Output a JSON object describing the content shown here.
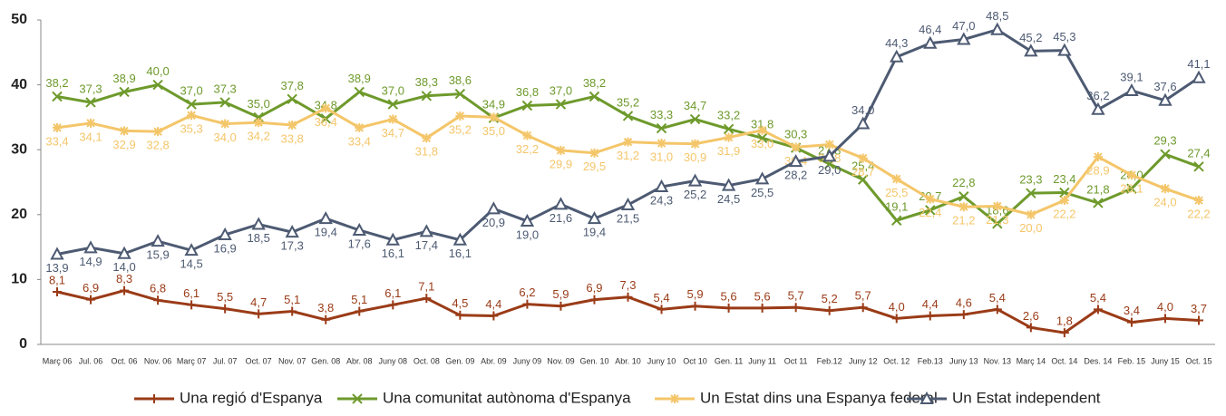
{
  "chart_data": {
    "type": "line",
    "categories": [
      "Març 06",
      "Jul. 06",
      "Oct. 06",
      "Nov. 06",
      "Març 07",
      "Jul. 07",
      "Oct. 07",
      "Nov. 07",
      "Gen. 08",
      "Abr. 08",
      "Juny 08",
      "Oct. 08",
      "Gen. 09",
      "Abr. 09",
      "Juny 09",
      "Nov. 09",
      "Gen. 10",
      "Abr. 10",
      "Juny 10",
      "Oct 10",
      "Gen. 11",
      "Juny 11",
      "Oct 11",
      "Feb.12",
      "Juny 12",
      "Oct. 12",
      "Feb.13",
      "Juny 13",
      "Nov. 13",
      "Març 14",
      "Oct. 14",
      "Des. 14",
      "Feb. 15",
      "Juny 15",
      "Oct. 15"
    ],
    "ylim": [
      0,
      50
    ],
    "yticks": [
      0,
      10,
      20,
      30,
      40,
      50
    ],
    "grid": false,
    "legend": "bottom",
    "series": [
      {
        "name": "Una regió d'Espanya",
        "color": "#9a3b17",
        "marker": "plus",
        "values": [
          8.1,
          6.9,
          8.3,
          6.8,
          6.1,
          5.5,
          4.7,
          5.1,
          3.8,
          5.1,
          6.1,
          7.1,
          4.5,
          4.4,
          6.2,
          5.9,
          6.9,
          7.3,
          5.4,
          5.9,
          5.6,
          5.6,
          5.7,
          5.2,
          5.7,
          4.0,
          4.4,
          4.6,
          5.4,
          2.6,
          1.8,
          5.4,
          3.4,
          4.0,
          3.7
        ],
        "value_labels": [
          "8,1",
          "6,9",
          "8,3",
          "6,8",
          "6,1",
          "5,5",
          "4,7",
          "5,1",
          "3,8",
          "5,1",
          "6,1",
          "7,1",
          "4,5",
          "4,4",
          "6,2",
          "5,9",
          "6,9",
          "7,3",
          "5,4",
          "5,9",
          "5,6",
          "5,6",
          "5,7",
          "5,2",
          "5,7",
          "4,0",
          "4,4",
          "4,6",
          "5,4",
          "2,6",
          "1,8",
          "5,4",
          "3,4",
          "4,0",
          "3,7"
        ]
      },
      {
        "name": "Una comunitat autònoma d'Espanya",
        "color": "#6e9a2c",
        "marker": "x",
        "values": [
          38.2,
          37.3,
          38.9,
          40.0,
          37.0,
          37.3,
          35.0,
          37.8,
          34.8,
          38.9,
          37.0,
          38.3,
          38.6,
          34.9,
          36.8,
          37.0,
          38.2,
          35.2,
          33.3,
          34.7,
          33.2,
          31.8,
          30.3,
          27.8,
          25.4,
          19.1,
          20.7,
          22.8,
          18.6,
          23.3,
          23.4,
          21.8,
          24.0,
          29.3,
          27.4
        ],
        "value_labels": [
          "38,2",
          "37,3",
          "38,9",
          "40,0",
          "37,0",
          "37,3",
          "35,0",
          "37,8",
          "34,8",
          "38,9",
          "37,0",
          "38,3",
          "38,6",
          "34,9",
          "36,8",
          "37,0",
          "38,2",
          "35,2",
          "33,3",
          "34,7",
          "33,2",
          "31,8",
          "30,3",
          "27,8",
          "25,4",
          "19,1",
          "20,7",
          "22,8",
          "18,6",
          "23,3",
          "23,4",
          "21,8",
          "24,0",
          "29,3",
          "27,4"
        ]
      },
      {
        "name": "Un Estat dins una Espanya federal",
        "color": "#f4c66a",
        "marker": "star",
        "values": [
          33.4,
          34.1,
          32.9,
          32.8,
          35.3,
          34.0,
          34.2,
          33.8,
          36.4,
          33.4,
          34.7,
          31.8,
          35.2,
          35.0,
          32.2,
          29.9,
          29.5,
          31.2,
          31.0,
          30.9,
          31.9,
          33.0,
          30.4,
          30.8,
          28.7,
          25.5,
          22.4,
          21.2,
          21.3,
          20.0,
          22.2,
          28.9,
          26.1,
          24.0,
          22.2
        ],
        "value_labels": [
          "33,4",
          "34,1",
          "32,9",
          "32,8",
          "35,3",
          "34,0",
          "34,2",
          "33,8",
          "36,4",
          "33,4",
          "34,7",
          "31,8",
          "35,2",
          "35,0",
          "32,2",
          "29,9",
          "29,5",
          "31,2",
          "31,0",
          "30,9",
          "31,9",
          "33,0",
          "30,4",
          "30,8",
          "28,7",
          "25,5",
          "22,4",
          "21,2",
          "21,3",
          "20,0",
          "22,2",
          "28,9",
          "26,1",
          "24,0",
          "22,2"
        ]
      },
      {
        "name": "Un Estat independent",
        "color": "#4d5a72",
        "marker": "triangle",
        "values": [
          13.9,
          14.9,
          14.0,
          15.9,
          14.5,
          16.9,
          18.5,
          17.3,
          19.4,
          17.6,
          16.1,
          17.4,
          16.1,
          20.9,
          19.0,
          21.6,
          19.4,
          21.5,
          24.3,
          25.2,
          24.5,
          25.5,
          28.2,
          29.0,
          34.0,
          44.3,
          46.4,
          47.0,
          48.5,
          45.2,
          45.3,
          36.2,
          39.1,
          37.6,
          41.1
        ],
        "value_labels": [
          "13,9",
          "14,9",
          "14,0",
          "15,9",
          "14,5",
          "16,9",
          "18,5",
          "17,3",
          "19,4",
          "17,6",
          "16,1",
          "17,4",
          "16,1",
          "20,9",
          "19,0",
          "21,6",
          "19,4",
          "21,5",
          "24,3",
          "25,2",
          "24,5",
          "25,5",
          "28,2",
          "29,0",
          "34,0",
          "44,3",
          "46,4",
          "47,0",
          "48,5",
          "45,2",
          "45,3",
          "36,2",
          "39,1",
          "37,6",
          "41,1"
        ]
      }
    ]
  }
}
